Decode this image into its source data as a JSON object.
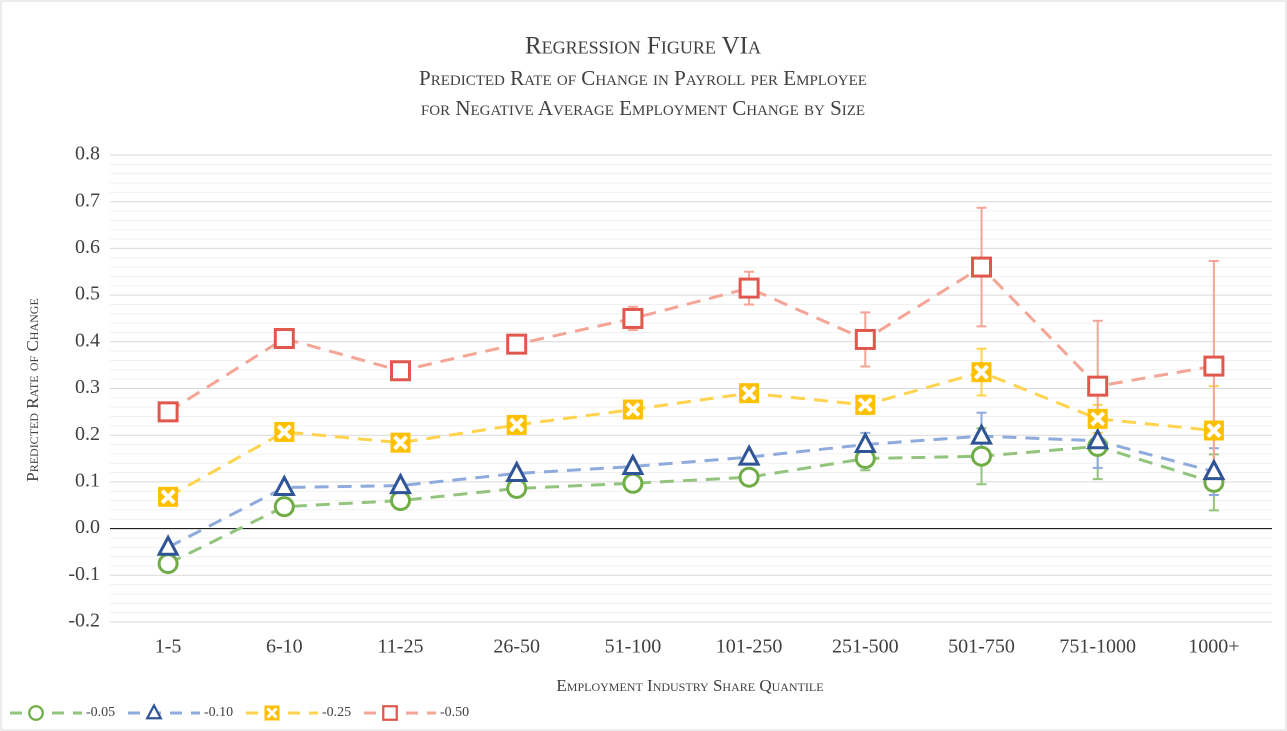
{
  "chart_data": {
    "type": "line",
    "title": "Regression Figure VIa",
    "subtitle": [
      "Predicted Rate of Change in Payroll per Employee",
      "for Negative Average Employment Change by Size"
    ],
    "x_label": "Employment Industry Share Quantile",
    "y_label": "Predicted Rate of Change",
    "categories": [
      "1-5",
      "6-10",
      "11-25",
      "26-50",
      "51-100",
      "101-250",
      "251-500",
      "501-750",
      "751-1000",
      "1000+"
    ],
    "ylim": [
      -0.2,
      0.8
    ],
    "yticks": [
      -0.2,
      -0.1,
      {
        "value": 0,
        "label": "0.0"
      },
      0.1,
      0.2,
      0.3,
      0.4,
      0.5,
      0.6,
      0.7,
      0.8
    ],
    "grid": true,
    "minor_grid": true,
    "legend": "bottom-left",
    "series": [
      {
        "name": "-0.05",
        "color": "#93c47d",
        "marker_color": "#70ad47",
        "marker": "circle",
        "values": [
          -0.075,
          0.047,
          0.06,
          0.086,
          0.097,
          0.11,
          0.15,
          0.155,
          0.176,
          0.099
        ],
        "errors": [
          0.005,
          0.005,
          0.005,
          0.006,
          0.006,
          0.006,
          0.025,
          0.06,
          0.07,
          0.06
        ]
      },
      {
        "name": "-0.10",
        "color": "#8faadc",
        "marker_color": "#2f5597",
        "marker": "triangle",
        "values": [
          -0.04,
          0.088,
          0.092,
          0.118,
          0.133,
          0.153,
          0.18,
          0.198,
          0.188,
          0.122
        ],
        "errors": [
          0.005,
          0.005,
          0.005,
          0.005,
          0.006,
          0.006,
          0.025,
          0.05,
          0.058,
          0.05
        ]
      },
      {
        "name": "-0.25",
        "color": "#ffd34d",
        "marker_color": "#ffc000",
        "marker": "xsquare",
        "values": [
          0.068,
          0.207,
          0.184,
          0.222,
          0.255,
          0.29,
          0.265,
          0.335,
          0.235,
          0.21
        ],
        "errors": [
          0.006,
          0.006,
          0.006,
          0.006,
          0.008,
          0.01,
          0.02,
          0.05,
          0.03,
          0.095
        ]
      },
      {
        "name": "-0.50",
        "color": "#f4a596",
        "marker_color": "#e0584d",
        "marker": "square",
        "values": [
          0.25,
          0.407,
          0.338,
          0.395,
          0.45,
          0.515,
          0.405,
          0.56,
          0.305,
          0.348
        ],
        "errors": [
          0.008,
          0.01,
          0.01,
          0.012,
          0.025,
          0.035,
          0.058,
          0.127,
          0.14,
          0.225
        ]
      }
    ]
  }
}
